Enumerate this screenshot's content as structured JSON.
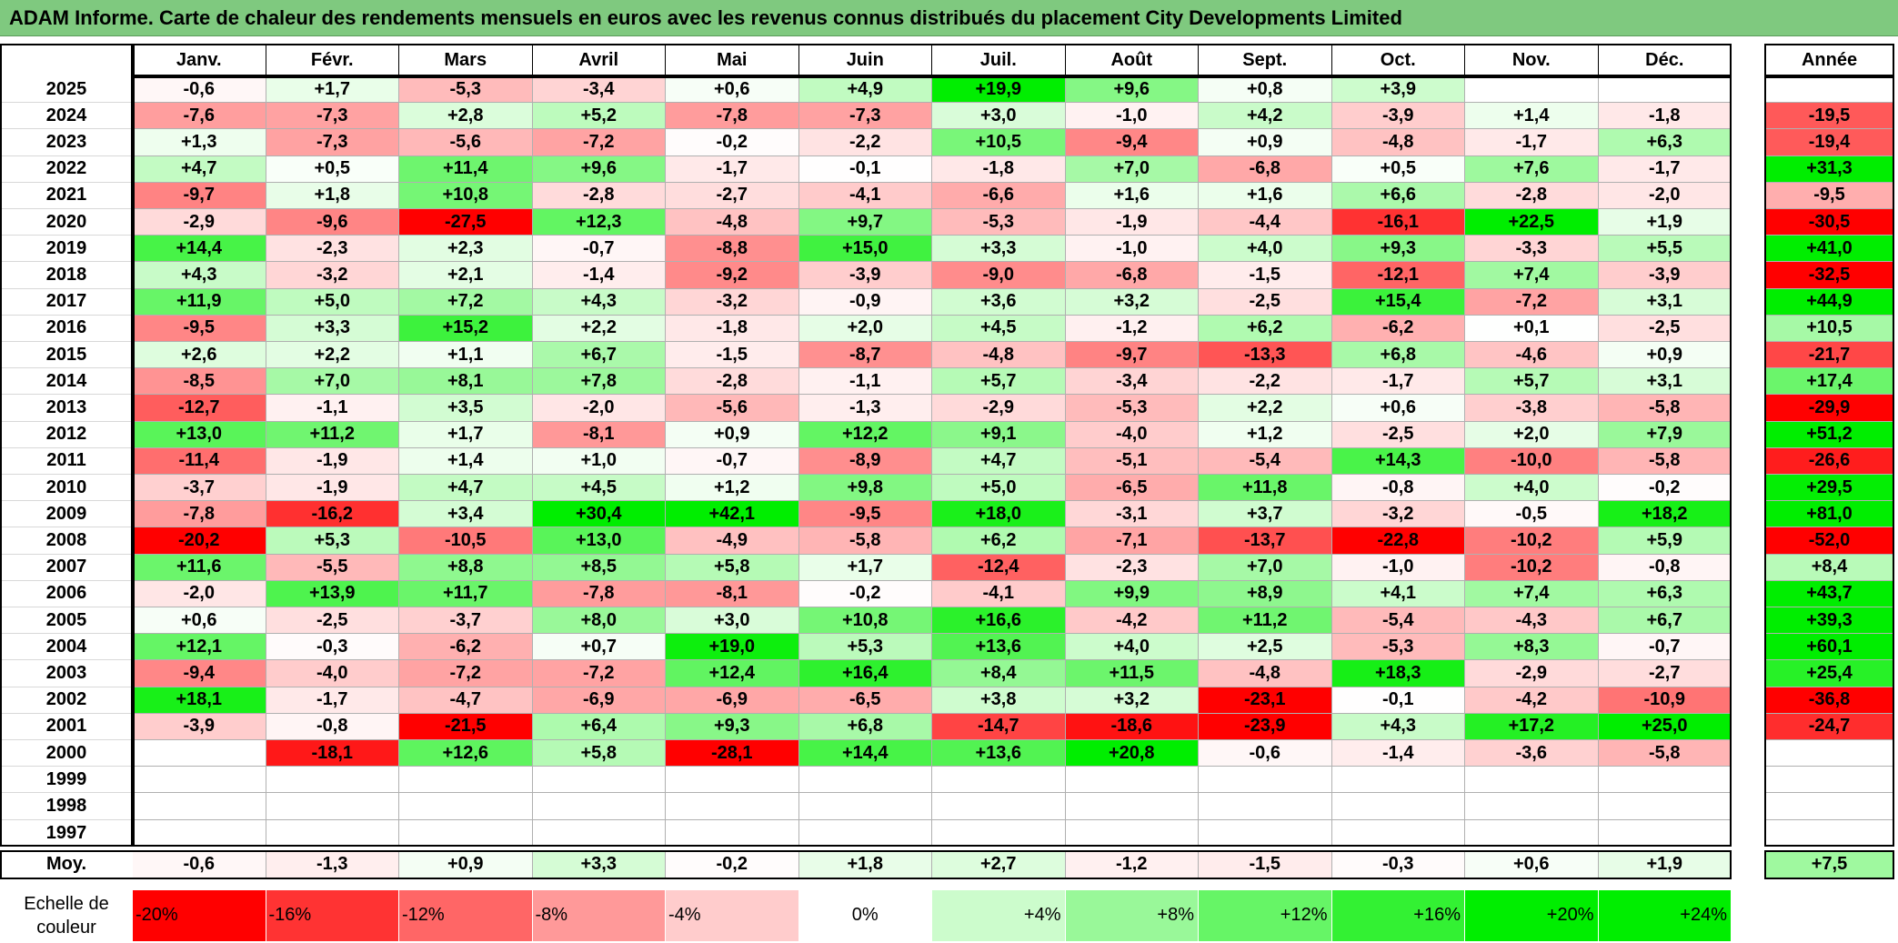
{
  "title": "ADAM Informe. Carte de chaleur des rendements mensuels en euros avec les revenus connus distribués du placement City Developments Limited",
  "colors": {
    "title_bg": "#7fc97f",
    "negative": "#ff0000",
    "positive": "#00ee00",
    "neutral": "#ffffff"
  },
  "chart_data": {
    "type": "heatmap",
    "months": [
      "Janv.",
      "Févr.",
      "Mars",
      "Avril",
      "Mai",
      "Juin",
      "Juil.",
      "Août",
      "Sept.",
      "Oct.",
      "Nov.",
      "Déc."
    ],
    "year_header": "Année",
    "rows": [
      {
        "year": "2025",
        "values": [
          "-0,6",
          "+1,7",
          "-5,3",
          "-3,4",
          "+0,6",
          "+4,9",
          "+19,9",
          "+9,6",
          "+0,8",
          "+3,9",
          "",
          ""
        ],
        "annual": ""
      },
      {
        "year": "2024",
        "values": [
          "-7,6",
          "-7,3",
          "+2,8",
          "+5,2",
          "-7,8",
          "-7,3",
          "+3,0",
          "-1,0",
          "+4,2",
          "-3,9",
          "+1,4",
          "-1,8"
        ],
        "annual": "-19,5"
      },
      {
        "year": "2023",
        "values": [
          "+1,3",
          "-7,3",
          "-5,6",
          "-7,2",
          "-0,2",
          "-2,2",
          "+10,5",
          "-9,4",
          "+0,9",
          "-4,8",
          "-1,7",
          "+6,3"
        ],
        "annual": "-19,4"
      },
      {
        "year": "2022",
        "values": [
          "+4,7",
          "+0,5",
          "+11,4",
          "+9,6",
          "-1,7",
          "-0,1",
          "-1,8",
          "+7,0",
          "-6,8",
          "+0,5",
          "+7,6",
          "-1,7"
        ],
        "annual": "+31,3"
      },
      {
        "year": "2021",
        "values": [
          "-9,7",
          "+1,8",
          "+10,8",
          "-2,8",
          "-2,7",
          "-4,1",
          "-6,6",
          "+1,6",
          "+1,6",
          "+6,6",
          "-2,8",
          "-2,0"
        ],
        "annual": "-9,5"
      },
      {
        "year": "2020",
        "values": [
          "-2,9",
          "-9,6",
          "-27,5",
          "+12,3",
          "-4,8",
          "+9,7",
          "-5,3",
          "-1,9",
          "-4,4",
          "-16,1",
          "+22,5",
          "+1,9"
        ],
        "annual": "-30,5"
      },
      {
        "year": "2019",
        "values": [
          "+14,4",
          "-2,3",
          "+2,3",
          "-0,7",
          "-8,8",
          "+15,0",
          "+3,3",
          "-1,0",
          "+4,0",
          "+9,3",
          "-3,3",
          "+5,5"
        ],
        "annual": "+41,0"
      },
      {
        "year": "2018",
        "values": [
          "+4,3",
          "-3,2",
          "+2,1",
          "-1,4",
          "-9,2",
          "-3,9",
          "-9,0",
          "-6,8",
          "-1,5",
          "-12,1",
          "+7,4",
          "-3,9"
        ],
        "annual": "-32,5"
      },
      {
        "year": "2017",
        "values": [
          "+11,9",
          "+5,0",
          "+7,2",
          "+4,3",
          "-3,2",
          "-0,9",
          "+3,6",
          "+3,2",
          "-2,5",
          "+15,4",
          "-7,2",
          "+3,1"
        ],
        "annual": "+44,9"
      },
      {
        "year": "2016",
        "values": [
          "-9,5",
          "+3,3",
          "+15,2",
          "+2,2",
          "-1,8",
          "+2,0",
          "+4,5",
          "-1,2",
          "+6,2",
          "-6,2",
          "+0,1",
          "-2,5"
        ],
        "annual": "+10,5"
      },
      {
        "year": "2015",
        "values": [
          "+2,6",
          "+2,2",
          "+1,1",
          "+6,7",
          "-1,5",
          "-8,7",
          "-4,8",
          "-9,7",
          "-13,3",
          "+6,8",
          "-4,6",
          "+0,9"
        ],
        "annual": "-21,7"
      },
      {
        "year": "2014",
        "values": [
          "-8,5",
          "+7,0",
          "+8,1",
          "+7,8",
          "-2,8",
          "-1,1",
          "+5,7",
          "-3,4",
          "-2,2",
          "-1,7",
          "+5,7",
          "+3,1"
        ],
        "annual": "+17,4"
      },
      {
        "year": "2013",
        "values": [
          "-12,7",
          "-1,1",
          "+3,5",
          "-2,0",
          "-5,6",
          "-1,3",
          "-2,9",
          "-5,3",
          "+2,2",
          "+0,6",
          "-3,8",
          "-5,8"
        ],
        "annual": "-29,9"
      },
      {
        "year": "2012",
        "values": [
          "+13,0",
          "+11,2",
          "+1,7",
          "-8,1",
          "+0,9",
          "+12,2",
          "+9,1",
          "-4,0",
          "+1,2",
          "-2,5",
          "+2,0",
          "+7,9"
        ],
        "annual": "+51,2"
      },
      {
        "year": "2011",
        "values": [
          "-11,4",
          "-1,9",
          "+1,4",
          "+1,0",
          "-0,7",
          "-8,9",
          "+4,7",
          "-5,1",
          "-5,4",
          "+14,3",
          "-10,0",
          "-5,8"
        ],
        "annual": "-26,6"
      },
      {
        "year": "2010",
        "values": [
          "-3,7",
          "-1,9",
          "+4,7",
          "+4,5",
          "+1,2",
          "+9,8",
          "+5,0",
          "-6,5",
          "+11,8",
          "-0,8",
          "+4,0",
          "-0,2"
        ],
        "annual": "+29,5"
      },
      {
        "year": "2009",
        "values": [
          "-7,8",
          "-16,2",
          "+3,4",
          "+30,4",
          "+42,1",
          "-9,5",
          "+18,0",
          "-3,1",
          "+3,7",
          "-3,2",
          "-0,5",
          "+18,2"
        ],
        "annual": "+81,0"
      },
      {
        "year": "2008",
        "values": [
          "-20,2",
          "+5,3",
          "-10,5",
          "+13,0",
          "-4,9",
          "-5,8",
          "+6,2",
          "-7,1",
          "-13,7",
          "-22,8",
          "-10,2",
          "+5,9"
        ],
        "annual": "-52,0"
      },
      {
        "year": "2007",
        "values": [
          "+11,6",
          "-5,5",
          "+8,8",
          "+8,5",
          "+5,8",
          "+1,7",
          "-12,4",
          "-2,3",
          "+7,0",
          "-1,0",
          "-10,2",
          "-0,8"
        ],
        "annual": "+8,4"
      },
      {
        "year": "2006",
        "values": [
          "-2,0",
          "+13,9",
          "+11,7",
          "-7,8",
          "-8,1",
          "-0,2",
          "-4,1",
          "+9,9",
          "+8,9",
          "+4,1",
          "+7,4",
          "+6,3"
        ],
        "annual": "+43,7"
      },
      {
        "year": "2005",
        "values": [
          "+0,6",
          "-2,5",
          "-3,7",
          "+8,0",
          "+3,0",
          "+10,8",
          "+16,6",
          "-4,2",
          "+11,2",
          "-5,4",
          "-4,3",
          "+6,7"
        ],
        "annual": "+39,3"
      },
      {
        "year": "2004",
        "values": [
          "+12,1",
          "-0,3",
          "-6,2",
          "+0,7",
          "+19,0",
          "+5,3",
          "+13,6",
          "+4,0",
          "+2,5",
          "-5,3",
          "+8,3",
          "-0,7"
        ],
        "annual": "+60,1"
      },
      {
        "year": "2003",
        "values": [
          "-9,4",
          "-4,0",
          "-7,2",
          "-7,2",
          "+12,4",
          "+16,4",
          "+8,4",
          "+11,5",
          "-4,8",
          "+18,3",
          "-2,9",
          "-2,7"
        ],
        "annual": "+25,4"
      },
      {
        "year": "2002",
        "values": [
          "+18,1",
          "-1,7",
          "-4,7",
          "-6,9",
          "-6,9",
          "-6,5",
          "+3,8",
          "+3,2",
          "-23,1",
          "-0,1",
          "-4,2",
          "-10,9"
        ],
        "annual": "-36,8"
      },
      {
        "year": "2001",
        "values": [
          "-3,9",
          "-0,8",
          "-21,5",
          "+6,4",
          "+9,3",
          "+6,8",
          "-14,7",
          "-18,6",
          "-23,9",
          "+4,3",
          "+17,2",
          "+25,0"
        ],
        "annual": "-24,7"
      },
      {
        "year": "2000",
        "values": [
          "",
          "-18,1",
          "+12,6",
          "+5,8",
          "-28,1",
          "+14,4",
          "+13,6",
          "+20,8",
          "-0,6",
          "-1,4",
          "-3,6",
          "-5,8"
        ],
        "annual": ""
      },
      {
        "year": "1999",
        "values": [
          "",
          "",
          "",
          "",
          "",
          "",
          "",
          "",
          "",
          "",
          "",
          ""
        ],
        "annual": ""
      },
      {
        "year": "1998",
        "values": [
          "",
          "",
          "",
          "",
          "",
          "",
          "",
          "",
          "",
          "",
          "",
          ""
        ],
        "annual": ""
      },
      {
        "year": "1997",
        "values": [
          "",
          "",
          "",
          "",
          "",
          "",
          "",
          "",
          "",
          "",
          "",
          ""
        ],
        "annual": ""
      }
    ],
    "average": {
      "label": "Moy.",
      "values": [
        "-0,6",
        "-1,3",
        "+0,9",
        "+3,3",
        "-0,2",
        "+1,8",
        "+2,7",
        "-1,2",
        "-1,5",
        "-0,3",
        "+0,6",
        "+1,9"
      ],
      "annual": "+7,5"
    },
    "legend": {
      "label_line1": "Echelle de",
      "label_line2": "couleur",
      "items": [
        {
          "label": "-20%",
          "value": -20
        },
        {
          "label": "-16%",
          "value": -16
        },
        {
          "label": "-12%",
          "value": -12
        },
        {
          "label": "-8%",
          "value": -8
        },
        {
          "label": "-4%",
          "value": -4
        },
        {
          "label": "0%",
          "value": 0
        },
        {
          "label": "+4%",
          "value": 4
        },
        {
          "label": "+8%",
          "value": 8
        },
        {
          "label": "+12%",
          "value": 12
        },
        {
          "label": "+16%",
          "value": 16
        },
        {
          "label": "+20%",
          "value": 20
        },
        {
          "label": "+24%",
          "value": 24
        }
      ]
    }
  }
}
